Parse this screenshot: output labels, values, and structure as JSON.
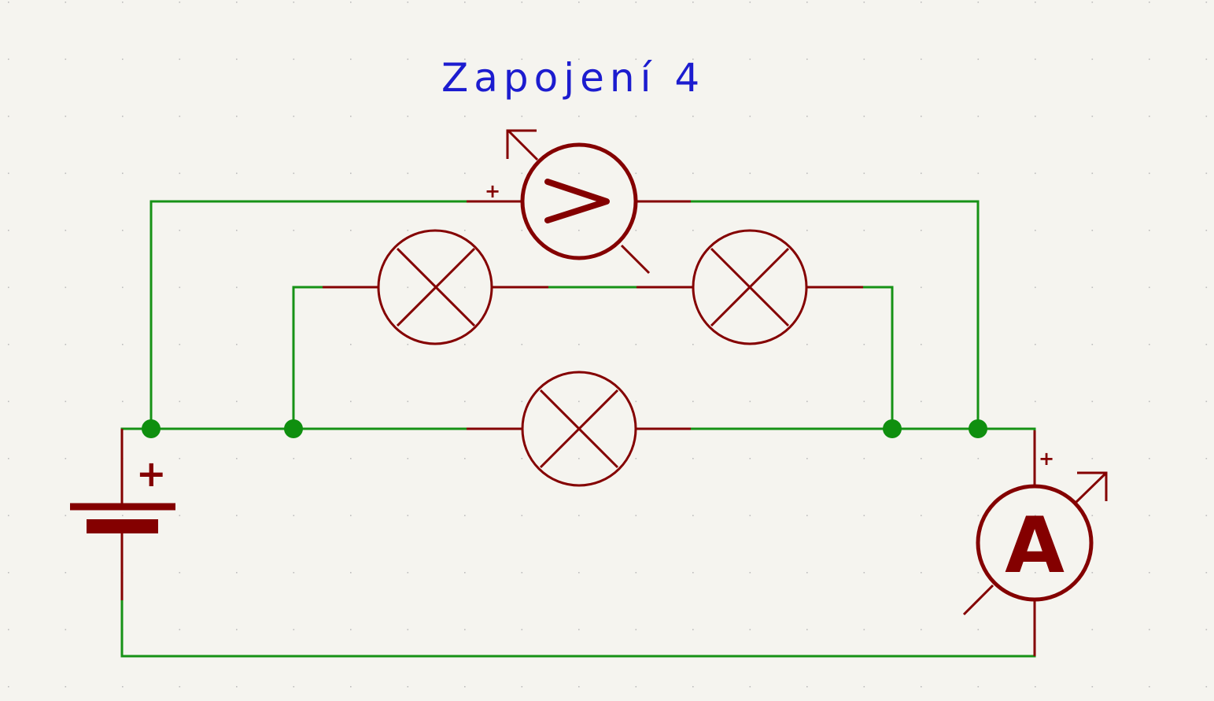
{
  "diagram": {
    "title": "Zapojení 4",
    "colors": {
      "background": "#f5f4ef",
      "wire": "#169216",
      "component": "#840000",
      "junction": "#0f8f0f",
      "title_text": "#1c1ccf",
      "grid_dot": "#bdbdbd"
    },
    "components": {
      "battery": {
        "type": "battery",
        "plus_label": "+"
      },
      "voltmeter": {
        "type": "voltmeter",
        "plus_label": "+"
      },
      "ammeter": {
        "type": "ammeter",
        "letter": "A",
        "plus_label": "+"
      },
      "lamps": [
        {
          "type": "lamp",
          "name": "lamp-top-left"
        },
        {
          "type": "lamp",
          "name": "lamp-top-right"
        },
        {
          "type": "lamp",
          "name": "lamp-bottom"
        }
      ]
    },
    "junction_count": 4
  }
}
